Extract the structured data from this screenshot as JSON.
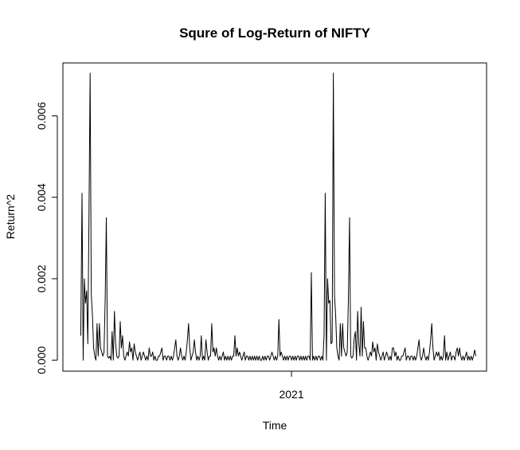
{
  "chart_data": {
    "type": "line",
    "title": "Squre of  Log-Return of NIFTY",
    "xlabel": "Time",
    "ylabel": "Return^2",
    "x_ticks": [
      {
        "value": 2021,
        "label": "2021"
      }
    ],
    "y_ticks": [
      {
        "value": 0.0,
        "label": "0.000"
      },
      {
        "value": 0.002,
        "label": "0.002"
      },
      {
        "value": 0.004,
        "label": "0.004"
      },
      {
        "value": 0.006,
        "label": "0.006"
      }
    ],
    "xlim": [
      2020.25,
      2021.64
    ],
    "ylim": [
      -0.00027,
      0.0073
    ],
    "line_color": "#000000",
    "series": [
      {
        "x_start": 2020.3086,
        "x_step": 0.0038,
        "values": [
          0.0006,
          0.0041,
          0.0,
          0.002,
          0.0014,
          0.0017,
          0.0004,
          0.0035,
          0.00705,
          0.0016,
          0.0011,
          0.0003,
          0.0001,
          0.0,
          0.0009,
          0.0001,
          0.0009,
          0.0003,
          0.0002,
          0.0001,
          0.0002,
          0.0015,
          0.0035,
          0.0001,
          5e-05,
          0.0001,
          0.0,
          0.0007,
          0.0,
          0.0012,
          0.0004,
          0.0001,
          5e-05,
          0.0001,
          0.00095,
          0.0003,
          0.0006,
          0.0001,
          0.0,
          0.0001,
          0.0002,
          0.0001,
          0.00045,
          0.0002,
          0.0003,
          0.0,
          0.0004,
          0.0002,
          0.0001,
          0.0,
          0.0001,
          0.0002,
          0.0,
          0.0001,
          0.0002,
          0.0001,
          0.0,
          0.0001,
          0.0,
          0.0003,
          0.0001,
          0.0001,
          0.0002,
          0.0,
          0.0001,
          0.0,
          0.0,
          0.0001,
          0.0001,
          0.0002,
          0.0003,
          0.0,
          0.0001,
          0.0001,
          0.0,
          0.0001,
          0.0001,
          0.0,
          0.0001,
          0.0,
          0.0001,
          0.0003,
          0.0005,
          0.0001,
          0.0,
          0.0001,
          0.0003,
          0.0001,
          0.0,
          0.0001,
          0.0,
          0.0002,
          0.0005,
          0.0009,
          0.0003,
          0.0,
          0.0001,
          0.0002,
          0.0001,
          0.0002,
          0.0,
          0.0001,
          0.0,
          0.0001,
          0.0006,
          0.0,
          0.0001,
          0.0,
          0.0001,
          0.0002,
          0.0,
          0.0001,
          0.0001,
          0.0,
          0.0002,
          0.0003,
          0.0001,
          0.0003,
          0.0001,
          0.0,
          0.0001,
          0.0,
          0.0001,
          0.0002,
          0.0,
          0.0001,
          0.0,
          0.0001,
          0.0,
          0.0001,
          0.0,
          0.0001,
          0.0001,
          0.0,
          0.0001,
          0.0003,
          0.0001,
          0.0002,
          0.0001,
          0.0,
          0.0001,
          0.0002,
          0.0,
          0.0001,
          0.0001,
          0.0,
          0.0001,
          0.0,
          0.0001,
          0.0,
          0.0001,
          0.0,
          0.0001,
          0.0,
          0.0001,
          0.0,
          0.0,
          0.0001,
          0.0,
          0.0001,
          0.0,
          0.0001,
          0.0001,
          0.0,
          0.0001,
          0.0002,
          0.0001,
          0.0,
          0.0001,
          0.0,
          0.0001,
          0.0,
          0.0001,
          0.0002,
          0.0001,
          0.0,
          0.0001,
          0.0,
          0.0001,
          0.0,
          0.0001,
          0.0001,
          0.0,
          0.0001,
          0.0,
          0.0001,
          0.0,
          0.0001,
          0.0001,
          0.0,
          0.0001,
          0.0,
          0.0001,
          0.0,
          0.0001,
          0.0,
          0.0001,
          0.0001,
          0.0,
          0.0001,
          0.0,
          0.0001,
          0.0,
          0.0001,
          0.0,
          0.0001,
          0.0001,
          0.0,
          0.0001,
          0.0
        ],
        "peaks": [
          {
            "x": 2020.3086,
            "y": 0.0006
          },
          {
            "x": 2020.3127,
            "y": 0.0041
          },
          {
            "x": 2020.3165,
            "y": 0.0
          },
          {
            "x": 2020.3203,
            "y": 0.002
          },
          {
            "x": 2020.3241,
            "y": 0.0014
          },
          {
            "x": 2020.3279,
            "y": 0.0017
          },
          {
            "x": 2020.3317,
            "y": 0.0004
          },
          {
            "x": 2020.3355,
            "y": 0.0035
          },
          {
            "x": 2020.3393,
            "y": 0.00705
          },
          {
            "x": 2020.3431,
            "y": 0.0016
          },
          {
            "x": 2020.3469,
            "y": 0.0011
          },
          {
            "x": 2020.3507,
            "y": 0.0003
          },
          {
            "x": 2020.3545,
            "y": 0.0001
          },
          {
            "x": 2020.3583,
            "y": 0.0
          },
          {
            "x": 2020.3621,
            "y": 0.0009
          },
          {
            "x": 2020.3659,
            "y": 0.0001
          },
          {
            "x": 2020.3697,
            "y": 0.0009
          },
          {
            "x": 2020.3735,
            "y": 0.0003
          },
          {
            "x": 2020.3773,
            "y": 0.0002
          },
          {
            "x": 2020.3811,
            "y": 0.0001
          },
          {
            "x": 2020.3849,
            "y": 0.0002
          },
          {
            "x": 2020.3887,
            "y": 0.0015
          },
          {
            "x": 2020.3925,
            "y": 0.0035
          },
          {
            "x": 2020.3963,
            "y": 0.0001
          },
          {
            "x": 2020.4001,
            "y": 5e-05
          },
          {
            "x": 2020.4039,
            "y": 0.0001
          },
          {
            "x": 2020.4077,
            "y": 0.0
          },
          {
            "x": 2020.4115,
            "y": 0.0007
          },
          {
            "x": 2020.4153,
            "y": 0.0
          },
          {
            "x": 2020.4191,
            "y": 0.0012
          },
          {
            "x": 2020.4229,
            "y": 0.0004
          },
          {
            "x": 2020.4267,
            "y": 0.0001
          },
          {
            "x": 2020.4305,
            "y": 5e-05
          },
          {
            "x": 2020.4343,
            "y": 0.0001
          },
          {
            "x": 2020.4381,
            "y": 0.00095
          },
          {
            "x": 2020.4419,
            "y": 0.0003
          },
          {
            "x": 2020.4457,
            "y": 0.0006
          }
        ]
      }
    ],
    "spikes_later": [
      {
        "x": 2020.68,
        "y": 0.0005
      },
      {
        "x": 2020.72,
        "y": 0.0005
      },
      {
        "x": 2020.74,
        "y": 0.0009
      },
      {
        "x": 2020.815,
        "y": 0.0006
      },
      {
        "x": 2020.96,
        "y": 0.001
      },
      {
        "x": 2021.065,
        "y": 0.00215
      },
      {
        "x": 2021.125,
        "y": 0.00147
      },
      {
        "x": 2021.135,
        "y": 0.00045
      },
      {
        "x": 2021.205,
        "y": 0.00053
      },
      {
        "x": 2021.23,
        "y": 0.0013
      },
      {
        "x": 2021.245,
        "y": 0.0003
      },
      {
        "x": 2021.335,
        "y": 0.0003
      },
      {
        "x": 2021.51,
        "y": 0.0002
      },
      {
        "x": 2021.6,
        "y": 0.00025
      }
    ],
    "grid": false,
    "legend": "none"
  }
}
